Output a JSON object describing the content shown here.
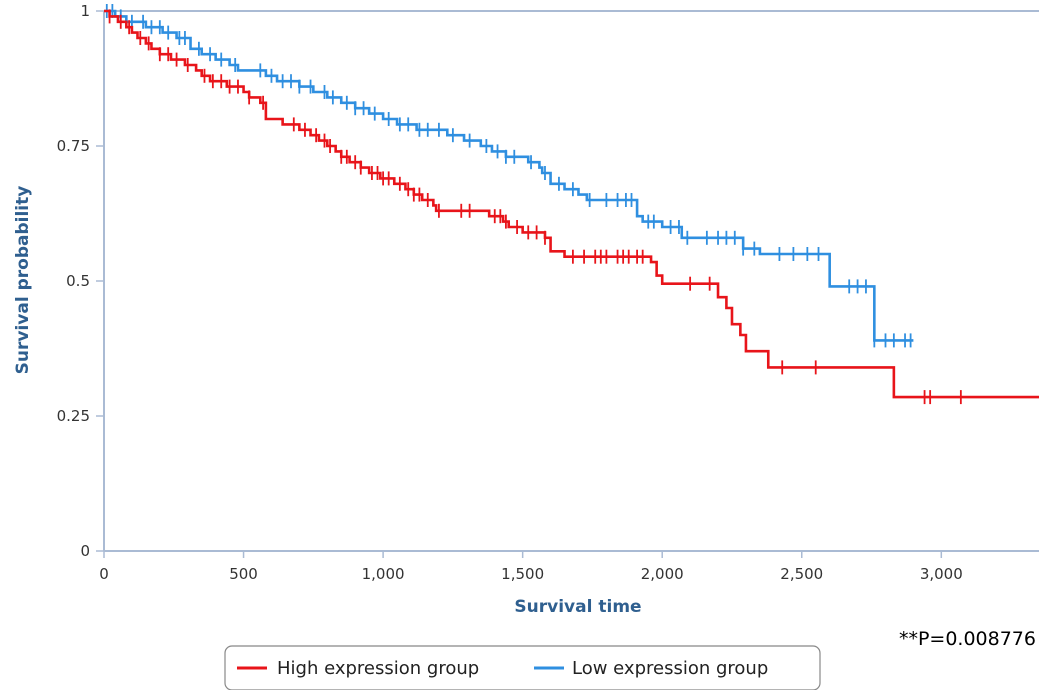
{
  "chart_data": {
    "type": "line",
    "subtype": "kaplan-meier step",
    "xlabel": "Survival time",
    "ylabel": "Survival probability",
    "xlim": [
      0,
      3350
    ],
    "ylim": [
      0,
      1
    ],
    "xticks": [
      0,
      500,
      1000,
      1500,
      2000,
      2500,
      3000
    ],
    "xtick_labels": [
      "0",
      "500",
      "1,000",
      "1,500",
      "2,000",
      "2,500",
      "3,000"
    ],
    "yticks": [
      0,
      0.25,
      0.5,
      0.75,
      1
    ],
    "ytick_labels": [
      "0",
      "0.25",
      "0.5",
      "0.75",
      "1"
    ],
    "annotation": "**P=0.008776",
    "legend_position": "bottom",
    "grid": false,
    "series": [
      {
        "name": "High expression group",
        "color": "#e8141a",
        "steps": [
          [
            0,
            1.0
          ],
          [
            20,
            0.99
          ],
          [
            50,
            0.98
          ],
          [
            80,
            0.97
          ],
          [
            100,
            0.96
          ],
          [
            120,
            0.95
          ],
          [
            150,
            0.94
          ],
          [
            170,
            0.93
          ],
          [
            200,
            0.92
          ],
          [
            240,
            0.91
          ],
          [
            290,
            0.9
          ],
          [
            330,
            0.89
          ],
          [
            350,
            0.88
          ],
          [
            380,
            0.87
          ],
          [
            440,
            0.86
          ],
          [
            500,
            0.85
          ],
          [
            520,
            0.84
          ],
          [
            560,
            0.83
          ],
          [
            580,
            0.8
          ],
          [
            640,
            0.79
          ],
          [
            700,
            0.78
          ],
          [
            740,
            0.77
          ],
          [
            770,
            0.76
          ],
          [
            800,
            0.75
          ],
          [
            830,
            0.74
          ],
          [
            850,
            0.73
          ],
          [
            880,
            0.72
          ],
          [
            920,
            0.71
          ],
          [
            950,
            0.7
          ],
          [
            990,
            0.69
          ],
          [
            1040,
            0.68
          ],
          [
            1080,
            0.67
          ],
          [
            1110,
            0.66
          ],
          [
            1140,
            0.65
          ],
          [
            1180,
            0.64
          ],
          [
            1190,
            0.63
          ],
          [
            1250,
            0.63
          ],
          [
            1380,
            0.62
          ],
          [
            1430,
            0.61
          ],
          [
            1450,
            0.6
          ],
          [
            1500,
            0.59
          ],
          [
            1580,
            0.58
          ],
          [
            1600,
            0.555
          ],
          [
            1650,
            0.545
          ],
          [
            1960,
            0.535
          ],
          [
            1980,
            0.51
          ],
          [
            2000,
            0.495
          ],
          [
            2200,
            0.47
          ],
          [
            2230,
            0.45
          ],
          [
            2250,
            0.42
          ],
          [
            2280,
            0.4
          ],
          [
            2300,
            0.37
          ],
          [
            2380,
            0.34
          ],
          [
            2830,
            0.285
          ],
          [
            3350,
            0.285
          ]
        ],
        "censor_times": [
          20,
          60,
          90,
          130,
          160,
          200,
          230,
          260,
          300,
          360,
          390,
          420,
          450,
          480,
          520,
          570,
          680,
          720,
          760,
          790,
          810,
          850,
          870,
          900,
          920,
          960,
          980,
          1000,
          1020,
          1060,
          1090,
          1110,
          1130,
          1160,
          1200,
          1280,
          1310,
          1400,
          1420,
          1440,
          1480,
          1520,
          1550,
          1580,
          1680,
          1720,
          1760,
          1780,
          1800,
          1840,
          1860,
          1880,
          1910,
          1930,
          2100,
          2170,
          2430,
          2550,
          2940,
          2960,
          3070
        ]
      },
      {
        "name": "Low expression group",
        "color": "#2f8fe0",
        "steps": [
          [
            0,
            1.0
          ],
          [
            40,
            0.99
          ],
          [
            80,
            0.98
          ],
          [
            150,
            0.97
          ],
          [
            210,
            0.96
          ],
          [
            260,
            0.95
          ],
          [
            310,
            0.93
          ],
          [
            350,
            0.92
          ],
          [
            400,
            0.91
          ],
          [
            450,
            0.9
          ],
          [
            480,
            0.89
          ],
          [
            580,
            0.88
          ],
          [
            620,
            0.87
          ],
          [
            700,
            0.86
          ],
          [
            750,
            0.85
          ],
          [
            800,
            0.84
          ],
          [
            850,
            0.83
          ],
          [
            900,
            0.82
          ],
          [
            950,
            0.81
          ],
          [
            1000,
            0.8
          ],
          [
            1050,
            0.79
          ],
          [
            1120,
            0.78
          ],
          [
            1230,
            0.77
          ],
          [
            1290,
            0.76
          ],
          [
            1350,
            0.75
          ],
          [
            1390,
            0.74
          ],
          [
            1440,
            0.73
          ],
          [
            1520,
            0.72
          ],
          [
            1560,
            0.71
          ],
          [
            1570,
            0.7
          ],
          [
            1600,
            0.68
          ],
          [
            1650,
            0.67
          ],
          [
            1700,
            0.66
          ],
          [
            1730,
            0.65
          ],
          [
            1780,
            0.65
          ],
          [
            1910,
            0.62
          ],
          [
            1930,
            0.61
          ],
          [
            2000,
            0.6
          ],
          [
            2070,
            0.58
          ],
          [
            2190,
            0.58
          ],
          [
            2290,
            0.56
          ],
          [
            2350,
            0.55
          ],
          [
            2600,
            0.49
          ],
          [
            2760,
            0.39
          ],
          [
            2900,
            0.39
          ]
        ],
        "censor_times": [
          10,
          30,
          60,
          100,
          140,
          170,
          200,
          230,
          270,
          290,
          340,
          380,
          420,
          470,
          560,
          600,
          640,
          670,
          700,
          740,
          790,
          820,
          870,
          900,
          930,
          970,
          1020,
          1060,
          1090,
          1130,
          1160,
          1200,
          1250,
          1310,
          1370,
          1410,
          1440,
          1470,
          1530,
          1580,
          1630,
          1680,
          1740,
          1800,
          1840,
          1870,
          1890,
          1950,
          1970,
          2030,
          2060,
          2090,
          2160,
          2200,
          2230,
          2260,
          2290,
          2330,
          2420,
          2470,
          2520,
          2560,
          2670,
          2700,
          2730,
          2760,
          2800,
          2830,
          2870,
          2890
        ]
      }
    ]
  }
}
